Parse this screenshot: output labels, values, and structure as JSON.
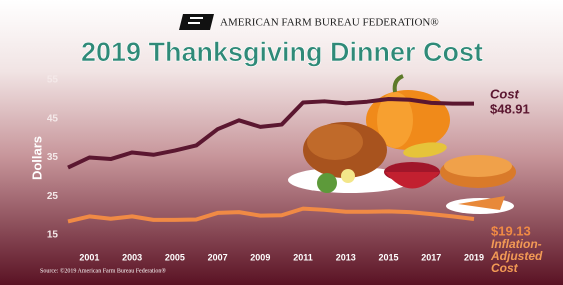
{
  "header": "AMERICAN FARM BUREAU FEDERATION®",
  "chart_data": {
    "type": "line",
    "title": "2019 Thanksgiving Dinner Cost",
    "y_label": "Dollars",
    "source": "Source: ©2019 American Farm Bureau Federation®",
    "x": [
      2000,
      2001,
      2002,
      2003,
      2004,
      2005,
      2006,
      2007,
      2008,
      2009,
      2010,
      2011,
      2012,
      2013,
      2014,
      2015,
      2016,
      2017,
      2018,
      2019
    ],
    "series": [
      {
        "name": "Cost",
        "color": "#5b1730",
        "values": [
          32.4,
          35.0,
          34.6,
          36.3,
          35.7,
          36.8,
          38.1,
          42.3,
          44.6,
          42.9,
          43.5,
          49.2,
          49.5,
          49.0,
          49.4,
          50.1,
          49.9,
          49.1,
          48.9,
          48.91
        ],
        "value_labels": [
          null,
          null,
          null,
          null,
          null,
          null,
          null,
          null,
          null,
          null,
          null,
          null,
          null,
          null,
          null,
          null,
          null,
          null,
          null,
          "$48.91"
        ]
      },
      {
        "name": "Inflation-Adjusted Cost",
        "color": "#f08a45",
        "values": [
          18.5,
          19.8,
          19.2,
          19.8,
          18.9,
          18.9,
          19.0,
          20.7,
          20.9,
          20.0,
          20.1,
          21.8,
          21.5,
          21.0,
          21.0,
          21.1,
          20.9,
          20.4,
          19.8,
          19.13
        ],
        "value_labels": [
          null,
          null,
          null,
          null,
          null,
          null,
          null,
          null,
          null,
          null,
          null,
          null,
          null,
          null,
          null,
          null,
          null,
          null,
          null,
          "$19.13"
        ]
      }
    ],
    "xlim": [
      2000,
      2019
    ],
    "xticks": [
      2001,
      2003,
      2005,
      2007,
      2009,
      2011,
      2013,
      2015,
      2017,
      2019
    ],
    "ylim": [
      15,
      55
    ],
    "yticks": [
      15,
      25,
      35,
      45,
      55
    ]
  }
}
